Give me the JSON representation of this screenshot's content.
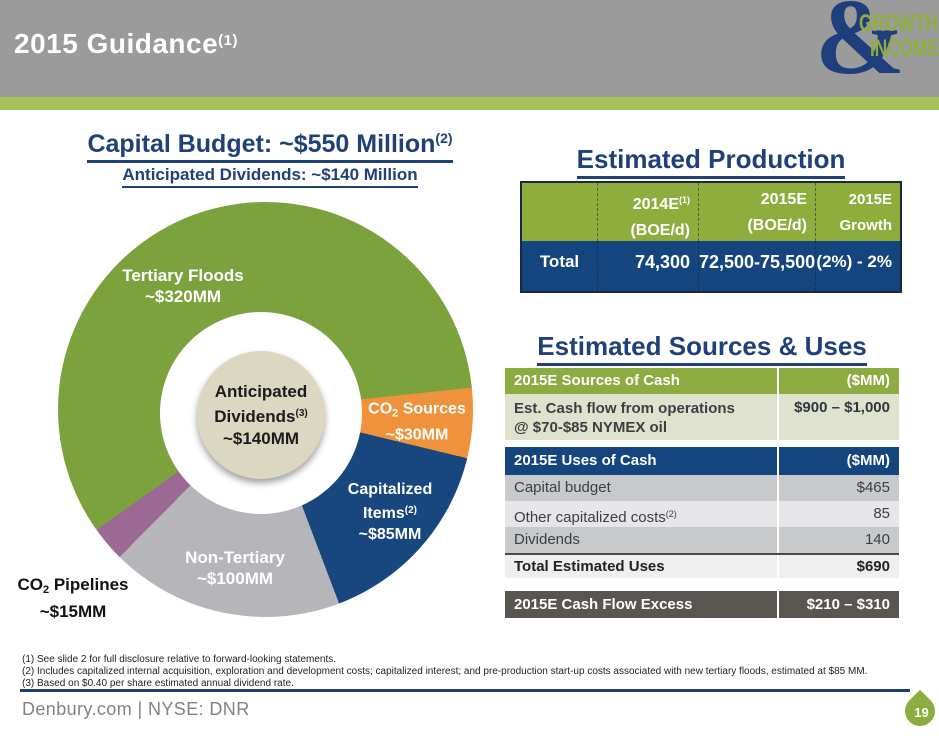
{
  "header": {
    "title": "2015 Guidance",
    "title_sup": "(1)",
    "logo": {
      "ampersand": "&",
      "word1": "GROWTH",
      "word2": "INCOME"
    }
  },
  "left": {
    "title": "Capital Budget: ~$550 Million",
    "title_sup": "(2)",
    "subtitle": "Anticipated Dividends: ~$140 Million"
  },
  "chart_data": {
    "type": "pie",
    "donut": true,
    "title": "Capital Budget: ~$550 Million",
    "subtitle": "Anticipated Dividends: ~$140 Million",
    "labels": [
      "Tertiary Floods",
      "CO2 Sources",
      "Capitalized Items",
      "Non-Tertiary",
      "CO2 Pipelines"
    ],
    "values_mm": [
      320,
      30,
      85,
      100,
      15
    ],
    "value_labels": [
      "~$320MM",
      "~$30MM",
      "~$85MM",
      "~$100MM",
      "~$15MM"
    ],
    "total_mm": 550,
    "center_label": "Anticipated Dividends ~$140MM",
    "colors": [
      "#7ba23d",
      "#f0923c",
      "#17477e",
      "#b6b5b9",
      "#9c6896"
    ],
    "start_angle_deg": -125.5
  },
  "pie_labels": {
    "tertiary": {
      "line1": "Tertiary Floods",
      "line2": "~$320MM"
    },
    "co2_sources": {
      "pre": "CO",
      "sub": "2",
      "post": " Sources",
      "line2": "~$30MM"
    },
    "capitalized": {
      "line1": "Capitalized",
      "line2a": "Items",
      "sup": "(2)",
      "line3": "~$85MM"
    },
    "non_tertiary": {
      "line1": "Non-Tertiary",
      "line2": "~$100MM"
    },
    "co2_pipelines": {
      "pre": "CO",
      "sub": "2",
      "post": " Pipelines",
      "line2": "~$15MM"
    },
    "center": {
      "line1": "Anticipated",
      "line2a": "Dividends",
      "sup": "(3)",
      "line3": "~$140MM"
    }
  },
  "production": {
    "title": "Estimated Production",
    "header": {
      "col2_line1": "2014E",
      "col2_sup": "(1)",
      "col2_line2": "(BOE/d)",
      "col3_line1": "2015E",
      "col3_line2": "(BOE/d)",
      "col4_line1": "2015E",
      "col4_line2": "Growth"
    },
    "row": {
      "label": "Total",
      "v2014": "74,300",
      "v2015": "72,500-75,500",
      "growth": "(2%) - 2%"
    }
  },
  "sources_uses": {
    "title": "Estimated Sources & Uses",
    "sources": {
      "header": "2015E Sources of Cash",
      "unit": "($MM)",
      "row_line1": "Est. Cash flow from operations",
      "row_line2": "@ $70-$85 NYMEX oil",
      "row_value": "$900 – $1,000"
    },
    "uses": {
      "header": "2015E Uses of Cash",
      "unit": "($MM)",
      "rows": [
        {
          "label": "Capital budget",
          "value": "$465"
        },
        {
          "label": "Other capitalized costs",
          "sup": "(2)",
          "value": "85"
        },
        {
          "label": "Dividends",
          "value": "140"
        }
      ],
      "total_label": "Total Estimated Uses",
      "total_value": "$690"
    },
    "excess": {
      "label": "2015E Cash Flow Excess",
      "value": "$210 – $310"
    }
  },
  "footnotes": [
    "(1)  See slide 2 for full disclosure relative to forward-looking statements.",
    "(2)  Includes capitalized internal acquisition, exploration and development costs; capitalized interest; and pre-production start-up costs associated with new tertiary floods, estimated at $85 MM.",
    "(3)  Based on $0.40 per share estimated annual dividend rate."
  ],
  "footer": {
    "text": "Denbury.com | NYSE: DNR",
    "page": "19"
  }
}
